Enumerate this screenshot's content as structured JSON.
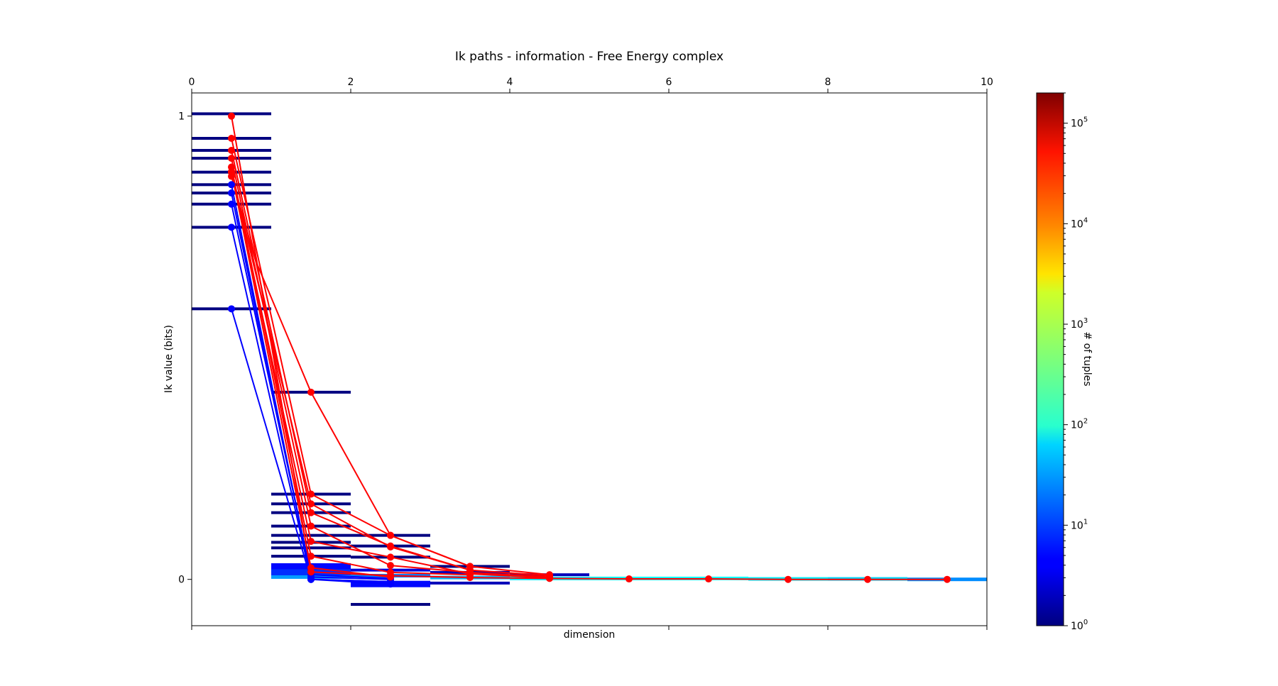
{
  "chart_data": {
    "type": "line",
    "title": "Ik paths - information - Free Energy complex",
    "xlabel": "dimension",
    "ylabel": "Ik value (bits)",
    "xlim": [
      0,
      10
    ],
    "ylim": [
      -0.1,
      1.05
    ],
    "x_ticks": [
      "0",
      "2",
      "4",
      "6",
      "8",
      "10"
    ],
    "y_ticks": [
      "0",
      "1"
    ],
    "grid": false,
    "colorbar": {
      "label": "# of tuples",
      "scale": "log",
      "range": [
        1,
        200000
      ],
      "colormap": "jet",
      "ticks": [
        "10^0",
        "10^1",
        "10^2",
        "10^3",
        "10^4",
        "10^5"
      ]
    },
    "histogram_bars": [
      {
        "dim": 1,
        "y": 1.005,
        "count": 1
      },
      {
        "dim": 1,
        "y": 0.952,
        "count": 1
      },
      {
        "dim": 1,
        "y": 0.926,
        "count": 1
      },
      {
        "dim": 1,
        "y": 0.909,
        "count": 1
      },
      {
        "dim": 1,
        "y": 0.879,
        "count": 1
      },
      {
        "dim": 1,
        "y": 0.852,
        "count": 1
      },
      {
        "dim": 1,
        "y": 0.834,
        "count": 1
      },
      {
        "dim": 1,
        "y": 0.81,
        "count": 1
      },
      {
        "dim": 1,
        "y": 0.76,
        "count": 1
      },
      {
        "dim": 1,
        "y": 0.584,
        "count": 1
      },
      {
        "dim": 2,
        "y": 0.404,
        "count": 1
      },
      {
        "dim": 2,
        "y": 0.184,
        "count": 1
      },
      {
        "dim": 2,
        "y": 0.163,
        "count": 1
      },
      {
        "dim": 2,
        "y": 0.144,
        "count": 1
      },
      {
        "dim": 2,
        "y": 0.115,
        "count": 1
      },
      {
        "dim": 2,
        "y": 0.095,
        "count": 1
      },
      {
        "dim": 2,
        "y": 0.08,
        "count": 1
      },
      {
        "dim": 2,
        "y": 0.068,
        "count": 1
      },
      {
        "dim": 2,
        "y": 0.05,
        "count": 1
      },
      {
        "dim": 2,
        "y": 0.028,
        "count": 5
      },
      {
        "dim": 2,
        "y": 0.015,
        "count": 8
      },
      {
        "dim": 2,
        "y": 0.005,
        "count": 30
      },
      {
        "dim": 3,
        "y": 0.095,
        "count": 1
      },
      {
        "dim": 3,
        "y": 0.072,
        "count": 1
      },
      {
        "dim": 3,
        "y": 0.048,
        "count": 1
      },
      {
        "dim": 3,
        "y": 0.02,
        "count": 3
      },
      {
        "dim": 3,
        "y": 0.008,
        "count": 20
      },
      {
        "dim": 3,
        "y": -0.01,
        "count": 5
      },
      {
        "dim": 3,
        "y": -0.054,
        "count": 1
      },
      {
        "dim": 4,
        "y": 0.028,
        "count": 1
      },
      {
        "dim": 4,
        "y": 0.015,
        "count": 2
      },
      {
        "dim": 4,
        "y": 0.004,
        "count": 40
      },
      {
        "dim": 4,
        "y": -0.008,
        "count": 2
      },
      {
        "dim": 5,
        "y": 0.01,
        "count": 2
      },
      {
        "dim": 5,
        "y": 0.002,
        "count": 80
      },
      {
        "dim": 6,
        "y": 0.002,
        "count": 100
      },
      {
        "dim": 7,
        "y": 0.002,
        "count": 100
      },
      {
        "dim": 8,
        "y": 0.001,
        "count": 80
      },
      {
        "dim": 9,
        "y": 0.001,
        "count": 60
      },
      {
        "dim": 10,
        "y": 0.0,
        "count": 25
      }
    ],
    "series": [
      {
        "color": "red",
        "x": [
          0.5,
          1.5,
          2.5,
          3.5,
          4.5,
          5.5,
          6.5,
          7.5,
          8.5,
          9.5
        ],
        "y": [
          1.0,
          0.016,
          0.008,
          0.004,
          0.002,
          0.001,
          0.001,
          0.0,
          0.0,
          0.0
        ]
      },
      {
        "color": "red",
        "x": [
          0.5,
          1.5,
          2.5,
          3.5,
          4.5
        ],
        "y": [
          0.952,
          0.184,
          0.095,
          0.028,
          0.01
        ]
      },
      {
        "color": "red",
        "x": [
          0.5,
          1.5,
          2.5,
          3.5,
          4.5
        ],
        "y": [
          0.926,
          0.144,
          0.072,
          0.02,
          0.008
        ]
      },
      {
        "color": "red",
        "x": [
          0.5,
          1.5,
          2.5,
          3.5,
          4.5
        ],
        "y": [
          0.909,
          0.115,
          0.03,
          0.015,
          0.005
        ]
      },
      {
        "color": "red",
        "x": [
          0.5,
          1.5,
          2.5,
          3.5,
          4.5
        ],
        "y": [
          0.879,
          0.082,
          0.048,
          0.012,
          0.003
        ]
      },
      {
        "color": "red",
        "x": [
          0.5,
          1.5,
          2.5,
          3.5
        ],
        "y": [
          0.879,
          0.163,
          0.07,
          0.02
        ]
      },
      {
        "color": "red",
        "x": [
          0.5,
          1.5,
          2.5,
          3.5
        ],
        "y": [
          0.89,
          0.05,
          0.015,
          0.01
        ]
      },
      {
        "color": "red",
        "x": [
          0.5,
          0.8,
          1.5,
          2.5,
          3.5
        ],
        "y": [
          0.87,
          0.69,
          0.404,
          0.095,
          0.028
        ]
      },
      {
        "color": "red",
        "x": [
          0.5,
          1.5,
          2.5
        ],
        "y": [
          0.88,
          0.025,
          0.005
        ]
      },
      {
        "color": "blue",
        "x": [
          0.5,
          1.5,
          2.5
        ],
        "y": [
          0.852,
          0.0,
          -0.01
        ]
      },
      {
        "color": "blue",
        "x": [
          0.5,
          1.5,
          2.5
        ],
        "y": [
          0.834,
          0.005,
          0.0
        ]
      },
      {
        "color": "blue",
        "x": [
          0.5,
          1.5,
          2.5
        ],
        "y": [
          0.81,
          0.01,
          0.002
        ]
      },
      {
        "color": "blue",
        "x": [
          0.5,
          1.5,
          2.5
        ],
        "y": [
          0.76,
          0.0,
          -0.005
        ]
      },
      {
        "color": "blue",
        "x": [
          0.5,
          1.5,
          2.5
        ],
        "y": [
          0.584,
          0.0,
          -0.005
        ]
      }
    ]
  }
}
